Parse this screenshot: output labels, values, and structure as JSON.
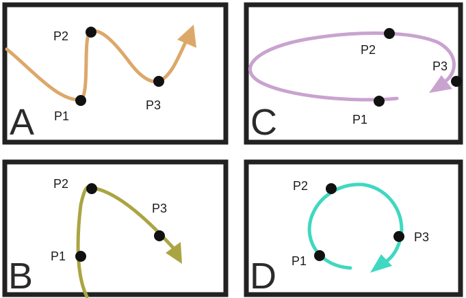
{
  "panels": {
    "a": {
      "letter": "A",
      "color": "#dca86a",
      "p1": "P1",
      "p2": "P2",
      "p3": "P3"
    },
    "b": {
      "letter": "B",
      "color": "#aaa542",
      "p1": "P1",
      "p2": "P2",
      "p3": "P3"
    },
    "c": {
      "letter": "C",
      "color": "#c9a3cf",
      "p1": "P1",
      "p2": "P2",
      "p3": "P3"
    },
    "d": {
      "letter": "D",
      "color": "#3fd8c0",
      "p1": "P1",
      "p2": "P2",
      "p3": "P3"
    }
  }
}
